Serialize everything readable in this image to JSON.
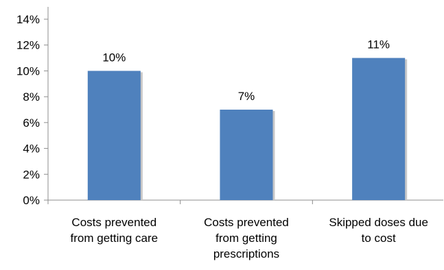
{
  "chart_data": {
    "type": "bar",
    "categories": [
      [
        "Costs prevented",
        "from getting care"
      ],
      [
        "Costs prevented",
        "from getting",
        "prescriptions"
      ],
      [
        "Skipped doses due",
        "to cost"
      ]
    ],
    "values": [
      10,
      7,
      11
    ],
    "data_labels": [
      "10%",
      "7%",
      "11%"
    ],
    "title": "",
    "xlabel": "",
    "ylabel": "",
    "ylim": [
      0,
      14
    ],
    "yticks": [
      0,
      2,
      4,
      6,
      8,
      10,
      12,
      14
    ],
    "ytick_labels": [
      "0%",
      "2%",
      "4%",
      "6%",
      "8%",
      "10%",
      "12%",
      "14%"
    ],
    "grid": false,
    "legend": "none",
    "colors": {
      "bar": "#4f81bd",
      "bar_shadow": "#c8c8c8",
      "axis": "#8c8c8c"
    }
  }
}
